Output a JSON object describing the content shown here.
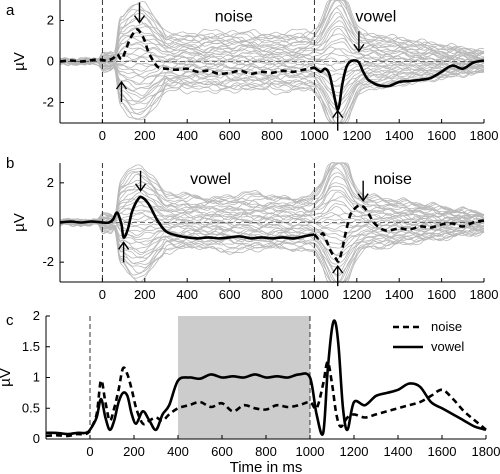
{
  "chart_data": [
    {
      "type": "line",
      "panel_label": "a",
      "xlim": [
        -200,
        1800
      ],
      "ylim": [
        -3,
        3
      ],
      "yticks": [
        -2,
        0,
        2
      ],
      "xticks": [
        0,
        200,
        400,
        600,
        800,
        1000,
        1200,
        1400,
        1600,
        1800
      ],
      "ylabel": "µV",
      "annotations": [
        {
          "text": "noise",
          "x": 620,
          "y": 2.2
        },
        {
          "text": "vowel",
          "x": 1290,
          "y": 2.2
        }
      ],
      "arrows": [
        {
          "dir": "down",
          "x": 175,
          "y": 1.9
        },
        {
          "dir": "up",
          "x": 90,
          "y": -1.0
        },
        {
          "dir": "down",
          "x": 1210,
          "y": 0.5
        },
        {
          "dir": "up",
          "x": 1110,
          "y": -2.4
        }
      ],
      "series": [
        {
          "style": "dashed",
          "x": [
            -200,
            -150,
            -100,
            -60,
            -20,
            20,
            50,
            70,
            90,
            110,
            130,
            160,
            180,
            200,
            220,
            260,
            300,
            350,
            400,
            450,
            500,
            550,
            600,
            650,
            700,
            750,
            800,
            850,
            900,
            950,
            1000
          ],
          "y": [
            0.0,
            0.05,
            0.0,
            0.05,
            0.1,
            0.05,
            0.15,
            0.35,
            0.1,
            0.55,
            1.1,
            1.55,
            1.4,
            1.0,
            0.4,
            -0.25,
            -0.35,
            -0.4,
            -0.35,
            -0.5,
            -0.45,
            -0.6,
            -0.55,
            -0.45,
            -0.6,
            -0.5,
            -0.55,
            -0.45,
            -0.5,
            -0.4,
            -0.3
          ]
        },
        {
          "style": "solid",
          "x": [
            1000,
            1030,
            1050,
            1070,
            1090,
            1100,
            1110,
            1120,
            1130,
            1150,
            1170,
            1190,
            1210,
            1230,
            1250,
            1270,
            1300,
            1350,
            1400,
            1450,
            1500,
            1550,
            1600,
            1650,
            1700,
            1750,
            1800
          ],
          "y": [
            -0.3,
            -0.5,
            -0.35,
            -0.6,
            -1.5,
            -2.0,
            -2.35,
            -2.0,
            -1.2,
            -0.3,
            0.0,
            0.05,
            -0.05,
            -0.5,
            -0.85,
            -1.0,
            -1.15,
            -1.2,
            -1.0,
            -0.95,
            -0.9,
            -0.8,
            -0.5,
            -0.2,
            -0.35,
            -0.05,
            0.05
          ]
        }
      ]
    },
    {
      "type": "line",
      "panel_label": "b",
      "xlim": [
        -200,
        1800
      ],
      "ylim": [
        -3,
        3
      ],
      "yticks": [
        -2,
        0,
        2
      ],
      "xticks": [
        0,
        200,
        400,
        600,
        800,
        1000,
        1200,
        1400,
        1600,
        1800
      ],
      "ylabel": "µV",
      "annotations": [
        {
          "text": "vowel",
          "x": 510,
          "y": 2.2
        },
        {
          "text": "noise",
          "x": 1370,
          "y": 2.2
        }
      ],
      "arrows": [
        {
          "dir": "down",
          "x": 180,
          "y": 1.6
        },
        {
          "dir": "up",
          "x": 100,
          "y": -1.0
        },
        {
          "dir": "down",
          "x": 1230,
          "y": 1.1
        },
        {
          "dir": "up",
          "x": 1110,
          "y": -2.2
        }
      ],
      "series": [
        {
          "style": "solid",
          "x": [
            -200,
            -150,
            -100,
            -50,
            0,
            30,
            50,
            70,
            90,
            100,
            120,
            140,
            170,
            190,
            220,
            260,
            300,
            350,
            400,
            450,
            500,
            550,
            600,
            650,
            700,
            750,
            800,
            850,
            900,
            950,
            1000
          ],
          "y": [
            0.0,
            0.05,
            0.0,
            0.05,
            0.0,
            0.0,
            0.15,
            0.5,
            -0.1,
            -0.75,
            -0.35,
            0.55,
            1.2,
            1.25,
            0.9,
            0.1,
            -0.45,
            -0.65,
            -0.75,
            -0.8,
            -0.75,
            -0.8,
            -0.75,
            -0.7,
            -0.8,
            -0.75,
            -0.8,
            -0.75,
            -0.8,
            -0.7,
            -0.6
          ]
        },
        {
          "style": "dashed",
          "x": [
            1000,
            1020,
            1040,
            1060,
            1080,
            1100,
            1115,
            1130,
            1150,
            1170,
            1190,
            1210,
            1230,
            1250,
            1280,
            1320,
            1350,
            1400,
            1450,
            1500,
            1550,
            1600,
            1650,
            1700,
            1750,
            1800
          ],
          "y": [
            -0.6,
            -0.8,
            -0.55,
            -1.0,
            -1.5,
            -1.8,
            -1.95,
            -1.4,
            -0.4,
            0.4,
            0.7,
            0.85,
            0.8,
            0.55,
            0.0,
            -0.35,
            -0.4,
            -0.3,
            -0.35,
            -0.2,
            -0.25,
            -0.1,
            -0.05,
            -0.2,
            0.0,
            0.1
          ]
        }
      ]
    },
    {
      "type": "line",
      "panel_label": "c",
      "xlim": [
        -200,
        1800
      ],
      "ylim": [
        0,
        2
      ],
      "yticks": [
        0,
        0.5,
        1,
        1.5,
        2
      ],
      "ytick_labels": [
        "0",
        "0.5",
        "1",
        "1.5",
        "2"
      ],
      "xticks": [
        0,
        200,
        400,
        600,
        800,
        1000,
        1200,
        1400,
        1600,
        1800
      ],
      "ylabel": "µV",
      "xlabel": "Time in ms",
      "shaded_region": [
        400,
        1000
      ],
      "legend": {
        "placement": "top-right",
        "entries": [
          {
            "name": "noise",
            "style": "dashed"
          },
          {
            "name": "vowel",
            "style": "solid"
          }
        ]
      },
      "series": [
        {
          "name": "noise",
          "style": "dashed",
          "x": [
            -200,
            -150,
            -100,
            -60,
            -20,
            0,
            30,
            50,
            70,
            90,
            110,
            130,
            150,
            170,
            190,
            210,
            240,
            270,
            300,
            330,
            360,
            400,
            450,
            500,
            550,
            600,
            650,
            700,
            750,
            800,
            850,
            900,
            950,
            1000,
            1030,
            1060,
            1080,
            1100,
            1120,
            1140,
            1170,
            1200,
            1250,
            1300,
            1350,
            1400,
            1450,
            1500,
            1550,
            1600,
            1650,
            1700,
            1750,
            1800
          ],
          "y": [
            0.05,
            0.06,
            0.05,
            0.08,
            0.08,
            0.15,
            0.4,
            0.95,
            0.6,
            0.3,
            0.5,
            0.8,
            1.15,
            1.05,
            0.8,
            0.5,
            0.25,
            0.3,
            0.35,
            0.3,
            0.4,
            0.5,
            0.55,
            0.6,
            0.52,
            0.58,
            0.45,
            0.55,
            0.5,
            0.48,
            0.55,
            0.52,
            0.55,
            0.6,
            0.5,
            0.9,
            1.25,
            0.9,
            0.4,
            0.2,
            0.35,
            0.4,
            0.35,
            0.4,
            0.45,
            0.5,
            0.55,
            0.6,
            0.7,
            0.8,
            0.65,
            0.45,
            0.3,
            0.15
          ]
        },
        {
          "name": "vowel",
          "style": "solid",
          "x": [
            -200,
            -150,
            -100,
            -60,
            -20,
            0,
            30,
            50,
            70,
            90,
            110,
            130,
            150,
            170,
            190,
            210,
            240,
            270,
            300,
            330,
            360,
            400,
            450,
            500,
            550,
            600,
            650,
            700,
            750,
            800,
            850,
            900,
            950,
            1000,
            1030,
            1060,
            1080,
            1100,
            1115,
            1130,
            1150,
            1170,
            1200,
            1250,
            1300,
            1350,
            1400,
            1450,
            1500,
            1550,
            1600,
            1650,
            1700,
            1750,
            1800
          ],
          "y": [
            0.1,
            0.1,
            0.08,
            0.1,
            0.1,
            0.15,
            0.35,
            0.65,
            0.35,
            0.15,
            0.3,
            0.6,
            0.75,
            0.7,
            0.4,
            0.25,
            0.45,
            0.3,
            0.15,
            0.4,
            0.55,
            0.95,
            1.0,
            0.98,
            1.05,
            1.0,
            1.02,
            1.0,
            1.05,
            1.0,
            1.02,
            1.0,
            1.05,
            1.0,
            0.4,
            0.1,
            1.1,
            1.8,
            1.9,
            1.5,
            0.5,
            0.15,
            0.6,
            0.55,
            0.7,
            0.75,
            0.8,
            0.9,
            0.85,
            0.6,
            0.5,
            0.4,
            0.3,
            0.2,
            0.15
          ]
        }
      ]
    }
  ]
}
